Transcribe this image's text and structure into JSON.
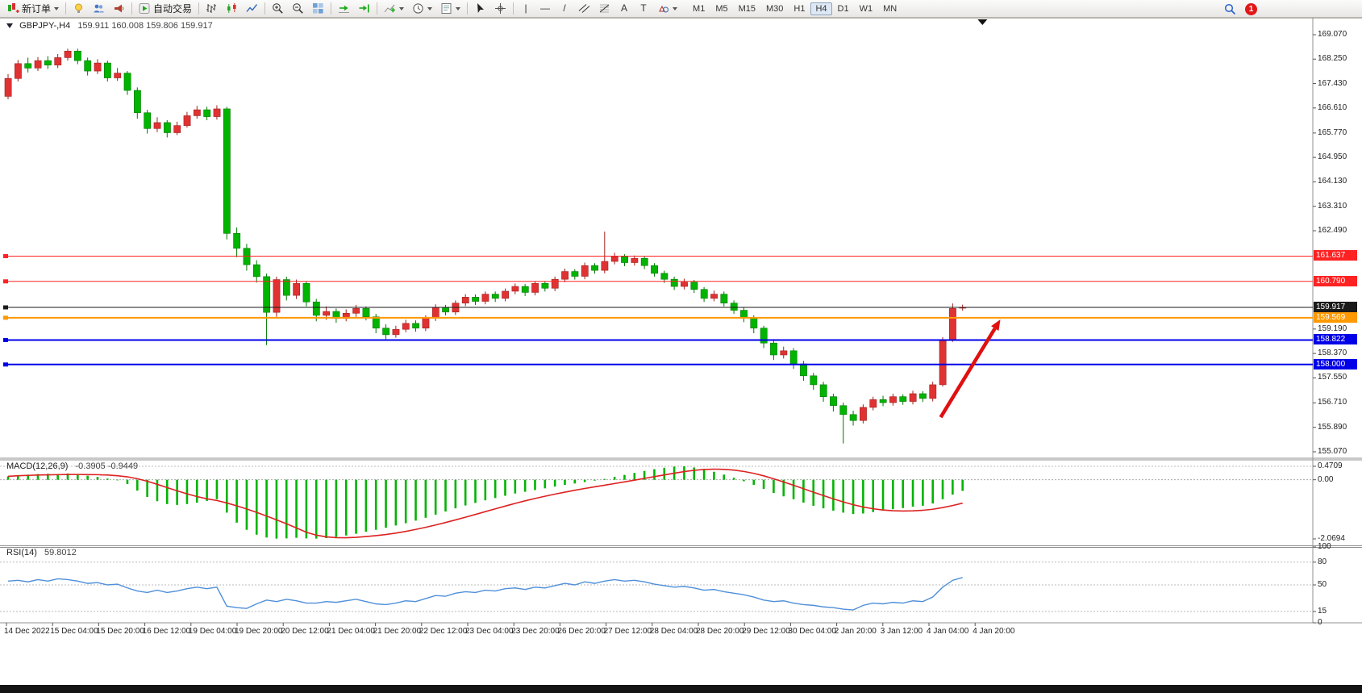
{
  "toolbar": {
    "new_order_label": "新订单",
    "autotrading_label": "自动交易",
    "timeframes": [
      "M1",
      "M5",
      "M15",
      "M30",
      "H1",
      "H4",
      "D1",
      "W1",
      "MN"
    ],
    "active_timeframe": "H4",
    "notification_count": "1"
  },
  "chart_header": {
    "symbol_timeframe": "GBPJPY-,H4",
    "ohlc": "159.911 160.008 159.806 159.917"
  },
  "indicators": {
    "macd_title": "MACD(12,26,9)",
    "macd_values": "-0.3905 -0.9449",
    "rsi_title": "RSI(14)",
    "rsi_value": "59.8012"
  },
  "colors": {
    "bull": "#e03232",
    "bull_stroke": "#a02020",
    "bear": "#00b400",
    "bear_stroke": "#007800",
    "macd_histogram": "#00b400",
    "macd_signal": "#dd2222",
    "rsi_line": "#4f8fd9",
    "arrow": "#e01010",
    "current_price_bg": "#1a1a1a"
  },
  "chart_data": [
    {
      "type": "candlestick",
      "title": "GBPJPY- H4",
      "ylim": [
        155.07,
        169.48
      ],
      "price_ticks": [
        169.07,
        168.25,
        167.43,
        166.61,
        165.77,
        164.95,
        164.13,
        163.31,
        162.49,
        159.19,
        158.37,
        157.55,
        156.71,
        155.89,
        155.07
      ],
      "hlines": [
        {
          "price": 161.637,
          "label": "161.637",
          "color": "#ff2222",
          "width": 1
        },
        {
          "price": 160.79,
          "label": "160.790",
          "color": "#ff2222",
          "width": 1
        },
        {
          "price": 159.917,
          "label": "159.917",
          "color": "#1a1a1a",
          "width": 1,
          "role": "current-price"
        },
        {
          "price": 159.569,
          "label": "159.569",
          "color": "#ff9900",
          "width": 2
        },
        {
          "price": 158.822,
          "label": "158.822",
          "color": "#0000e8",
          "width": 2
        },
        {
          "price": 158.0,
          "label": "158.000",
          "color": "#0000e8",
          "width": 2
        }
      ],
      "x_labels": [
        "14 Dec 2022",
        "15 Dec 04:00",
        "15 Dec 20:00",
        "16 Dec 12:00",
        "19 Dec 04:00",
        "19 Dec 20:00",
        "20 Dec 12:00",
        "21 Dec 04:00",
        "21 Dec 20:00",
        "22 Dec 12:00",
        "23 Dec 04:00",
        "23 Dec 20:00",
        "26 Dec 20:00",
        "27 Dec 12:00",
        "28 Dec 04:00",
        "28 Dec 20:00",
        "29 Dec 12:00",
        "30 Dec 04:00",
        "2 Jan 20:00",
        "3 Jan 12:00",
        "4 Jan 04:00",
        "4 Jan 20:00"
      ],
      "ohlc": [
        [
          167.0,
          167.75,
          166.9,
          167.6
        ],
        [
          167.6,
          168.22,
          167.5,
          168.1
        ],
        [
          168.1,
          168.3,
          167.8,
          167.95
        ],
        [
          167.95,
          168.32,
          167.85,
          168.2
        ],
        [
          168.2,
          168.35,
          167.92,
          168.05
        ],
        [
          168.05,
          168.42,
          167.95,
          168.3
        ],
        [
          168.3,
          168.6,
          168.2,
          168.52
        ],
        [
          168.52,
          168.6,
          168.08,
          168.2
        ],
        [
          168.2,
          168.3,
          167.7,
          167.85
        ],
        [
          167.85,
          168.25,
          167.75,
          168.12
        ],
        [
          168.12,
          168.2,
          167.5,
          167.62
        ],
        [
          167.62,
          167.95,
          167.52,
          167.78
        ],
        [
          167.78,
          167.85,
          167.05,
          167.2
        ],
        [
          167.2,
          167.3,
          166.25,
          166.45
        ],
        [
          166.45,
          166.55,
          165.75,
          165.92
        ],
        [
          165.92,
          166.3,
          165.8,
          166.12
        ],
        [
          166.12,
          166.2,
          165.62,
          165.78
        ],
        [
          165.78,
          166.15,
          165.7,
          166.02
        ],
        [
          166.02,
          166.48,
          165.95,
          166.35
        ],
        [
          166.35,
          166.68,
          166.25,
          166.55
        ],
        [
          166.55,
          166.65,
          166.2,
          166.32
        ],
        [
          166.32,
          166.7,
          166.22,
          166.58
        ],
        [
          166.58,
          166.65,
          162.2,
          162.4
        ],
        [
          162.4,
          162.6,
          161.6,
          161.9
        ],
        [
          161.9,
          162.05,
          161.15,
          161.35
        ],
        [
          161.35,
          161.5,
          160.75,
          160.95
        ],
        [
          160.95,
          161.05,
          158.65,
          159.75
        ],
        [
          159.75,
          160.95,
          159.6,
          160.85
        ],
        [
          160.85,
          160.95,
          160.15,
          160.32
        ],
        [
          160.32,
          160.85,
          160.2,
          160.72
        ],
        [
          160.72,
          160.8,
          159.95,
          160.1
        ],
        [
          160.1,
          160.2,
          159.45,
          159.65
        ],
        [
          159.65,
          159.95,
          159.5,
          159.78
        ],
        [
          159.78,
          159.88,
          159.4,
          159.55
        ],
        [
          159.55,
          159.85,
          159.45,
          159.72
        ],
        [
          159.72,
          160.0,
          159.6,
          159.88
        ],
        [
          159.88,
          159.95,
          159.48,
          159.6
        ],
        [
          159.6,
          159.7,
          159.05,
          159.22
        ],
        [
          159.22,
          159.35,
          158.85,
          159.0
        ],
        [
          159.0,
          159.3,
          158.9,
          159.18
        ],
        [
          159.18,
          159.5,
          159.08,
          159.38
        ],
        [
          159.38,
          159.48,
          159.1,
          159.22
        ],
        [
          159.22,
          159.65,
          159.12,
          159.56
        ],
        [
          159.56,
          160.02,
          159.46,
          159.92
        ],
        [
          159.92,
          160.0,
          159.65,
          159.76
        ],
        [
          159.76,
          160.15,
          159.66,
          160.06
        ],
        [
          160.06,
          160.36,
          159.96,
          160.26
        ],
        [
          160.26,
          160.35,
          160.0,
          160.12
        ],
        [
          160.12,
          160.45,
          160.02,
          160.36
        ],
        [
          160.36,
          160.45,
          160.1,
          160.22
        ],
        [
          160.22,
          160.55,
          160.12,
          160.46
        ],
        [
          160.46,
          160.72,
          160.36,
          160.62
        ],
        [
          160.62,
          160.7,
          160.3,
          160.42
        ],
        [
          160.42,
          160.8,
          160.32,
          160.72
        ],
        [
          160.72,
          160.8,
          160.45,
          160.56
        ],
        [
          160.56,
          160.95,
          160.46,
          160.86
        ],
        [
          160.86,
          161.22,
          160.76,
          161.12
        ],
        [
          161.12,
          161.2,
          160.85,
          160.96
        ],
        [
          160.96,
          161.42,
          160.86,
          161.32
        ],
        [
          161.32,
          161.4,
          161.05,
          161.16
        ],
        [
          161.16,
          162.46,
          161.06,
          161.46
        ],
        [
          161.46,
          161.75,
          161.36,
          161.62
        ],
        [
          161.62,
          161.7,
          161.3,
          161.42
        ],
        [
          161.42,
          161.66,
          161.32,
          161.56
        ],
        [
          161.56,
          161.64,
          161.2,
          161.32
        ],
        [
          161.32,
          161.4,
          160.95,
          161.06
        ],
        [
          161.06,
          161.15,
          160.74,
          160.86
        ],
        [
          160.86,
          160.95,
          160.5,
          160.62
        ],
        [
          160.62,
          160.88,
          160.52,
          160.76
        ],
        [
          160.76,
          160.84,
          160.4,
          160.52
        ],
        [
          160.52,
          160.6,
          160.1,
          160.22
        ],
        [
          160.22,
          160.48,
          160.12,
          160.36
        ],
        [
          160.36,
          160.45,
          159.95,
          160.06
        ],
        [
          160.06,
          160.15,
          159.7,
          159.82
        ],
        [
          159.82,
          159.92,
          159.42,
          159.56
        ],
        [
          159.56,
          159.65,
          159.05,
          159.22
        ],
        [
          159.22,
          159.3,
          158.55,
          158.72
        ],
        [
          158.72,
          158.85,
          158.15,
          158.32
        ],
        [
          158.32,
          158.6,
          158.2,
          158.46
        ],
        [
          158.46,
          158.55,
          157.85,
          158.02
        ],
        [
          158.02,
          158.12,
          157.45,
          157.62
        ],
        [
          157.62,
          157.72,
          157.15,
          157.32
        ],
        [
          157.32,
          157.42,
          156.75,
          156.92
        ],
        [
          156.92,
          157.02,
          156.42,
          156.62
        ],
        [
          156.62,
          156.72,
          155.35,
          156.32
        ],
        [
          156.32,
          156.45,
          155.95,
          156.12
        ],
        [
          156.12,
          156.66,
          156.02,
          156.56
        ],
        [
          156.56,
          156.92,
          156.46,
          156.82
        ],
        [
          156.82,
          156.95,
          156.6,
          156.72
        ],
        [
          156.72,
          157.02,
          156.62,
          156.92
        ],
        [
          156.92,
          157.0,
          156.65,
          156.76
        ],
        [
          156.76,
          157.12,
          156.66,
          157.02
        ],
        [
          157.02,
          157.1,
          156.74,
          156.86
        ],
        [
          156.86,
          157.42,
          156.76,
          157.32
        ],
        [
          157.32,
          158.92,
          157.26,
          158.82
        ],
        [
          158.82,
          160.05,
          158.76,
          159.88
        ],
        [
          159.911,
          160.008,
          159.806,
          159.917
        ]
      ]
    },
    {
      "type": "bar",
      "name": "MACD",
      "ylim": [
        -2.0694,
        0.4709
      ],
      "axis_ticks": [
        {
          "label": "0.4709",
          "value": 0.4709
        },
        {
          "label": "0.00",
          "value": 0
        },
        {
          "label": "-2.0694",
          "value": -2.0694
        }
      ],
      "signal_period": 9,
      "histogram": [
        0.12,
        0.16,
        0.18,
        0.2,
        0.21,
        0.2,
        0.22,
        0.19,
        0.14,
        0.1,
        0.04,
        -0.02,
        -0.15,
        -0.38,
        -0.6,
        -0.75,
        -0.85,
        -0.88,
        -0.85,
        -0.8,
        -0.74,
        -0.68,
        -1.15,
        -1.5,
        -1.75,
        -1.92,
        -2.02,
        -2.06,
        -2.05,
        -2.03,
        -2.05,
        -2.06,
        -2.04,
        -2.0,
        -1.95,
        -1.89,
        -1.82,
        -1.75,
        -1.68,
        -1.6,
        -1.52,
        -1.43,
        -1.33,
        -1.22,
        -1.11,
        -1.0,
        -0.9,
        -0.81,
        -0.72,
        -0.64,
        -0.56,
        -0.48,
        -0.42,
        -0.36,
        -0.3,
        -0.24,
        -0.18,
        -0.13,
        -0.08,
        -0.03,
        0.03,
        0.1,
        0.17,
        0.24,
        0.31,
        0.37,
        0.42,
        0.46,
        0.47,
        0.43,
        0.36,
        0.28,
        0.18,
        0.07,
        -0.05,
        -0.18,
        -0.32,
        -0.46,
        -0.58,
        -0.68,
        -0.8,
        -0.91,
        -1.0,
        -1.08,
        -1.15,
        -1.2,
        -1.18,
        -1.13,
        -1.08,
        -1.03,
        -0.99,
        -0.94,
        -0.91,
        -0.83,
        -0.68,
        -0.52,
        -0.39
      ]
    },
    {
      "type": "line",
      "name": "RSI",
      "ylim": [
        0,
        100
      ],
      "axis_ticks": [
        {
          "label": "100",
          "value": 100
        },
        {
          "label": "80",
          "value": 80
        },
        {
          "label": "50",
          "value": 50
        },
        {
          "label": "15",
          "value": 15
        },
        {
          "label": "0",
          "value": 0
        }
      ],
      "levels": [
        80,
        50,
        15
      ],
      "values": [
        55,
        56,
        54,
        57,
        55,
        58,
        57,
        55,
        52,
        53,
        50,
        51,
        46,
        42,
        40,
        43,
        40,
        42,
        45,
        47,
        45,
        47,
        22,
        20,
        19,
        25,
        30,
        28,
        31,
        29,
        26,
        26,
        28,
        27,
        29,
        31,
        28,
        25,
        24,
        26,
        29,
        28,
        32,
        36,
        35,
        39,
        41,
        40,
        43,
        42,
        45,
        46,
        44,
        47,
        46,
        49,
        52,
        50,
        54,
        52,
        55,
        57,
        55,
        56,
        54,
        51,
        49,
        47,
        48,
        46,
        43,
        44,
        41,
        39,
        37,
        34,
        30,
        28,
        29,
        26,
        24,
        23,
        21,
        20,
        18,
        17,
        23,
        26,
        25,
        27,
        26,
        29,
        28,
        34,
        47,
        56,
        59.8
      ]
    }
  ],
  "annotations": {
    "up_arrow": {
      "x1_bar": 93.8,
      "price1": 156.23,
      "x2_bar": 99.8,
      "price2": 159.51
    },
    "scroll_marker_bar": 98
  }
}
